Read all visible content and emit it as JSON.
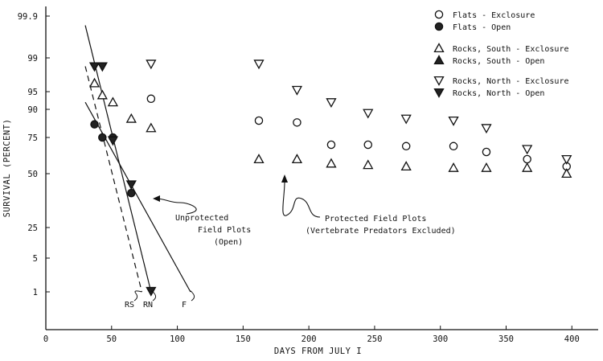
{
  "chart_data": {
    "type": "scatter",
    "xlabel": "DAYS FROM JULY I",
    "ylabel": "SURVIVAL (PERCENT)",
    "scale": "probability",
    "xlim": [
      0,
      420
    ],
    "x_ticks": [
      0,
      50,
      100,
      150,
      200,
      250,
      300,
      350,
      400
    ],
    "y_ticks": [
      1,
      5,
      25,
      50,
      75,
      90,
      95,
      99,
      99.9
    ],
    "y_tick_labels": [
      "1",
      "5",
      "25",
      "50",
      "75",
      "90",
      "95",
      "99",
      "99.9"
    ],
    "legend_position": "top-right",
    "series": [
      {
        "name": "Flats - Exclosure",
        "marker": "circle-open",
        "x": [
          80,
          162,
          191,
          217,
          245,
          274,
          310,
          335,
          366,
          396
        ],
        "y": [
          93,
          84,
          83,
          70,
          70,
          69,
          69,
          65,
          60,
          55
        ]
      },
      {
        "name": "Flats - Open",
        "marker": "circle-filled",
        "x": [
          37,
          43,
          51,
          65
        ],
        "y": [
          82,
          75,
          75,
          41
        ]
      },
      {
        "name": "Rocks, South - Exclosure",
        "marker": "triangle-up-open",
        "x": [
          37,
          43,
          51,
          65,
          80,
          162,
          191,
          217,
          245,
          274,
          310,
          335,
          366,
          396
        ],
        "y": [
          96,
          94,
          92,
          85,
          80,
          60,
          60,
          57,
          56,
          55,
          54,
          54,
          54,
          50
        ]
      },
      {
        "name": "Rocks, South - Open",
        "marker": "triangle-up-filled",
        "x": [],
        "y": []
      },
      {
        "name": "Rocks, North - Exclosure",
        "marker": "triangle-down-open",
        "x": [
          80,
          162,
          191,
          217,
          245,
          274,
          310,
          335,
          366,
          396
        ],
        "y": [
          98.3,
          98.3,
          95.2,
          92,
          88,
          85,
          84,
          80,
          67,
          60
        ]
      },
      {
        "name": "Rocks, North - Open",
        "marker": "triangle-down-filled",
        "x": [
          37,
          43,
          51,
          65,
          80
        ],
        "y": [
          98,
          98,
          73,
          45,
          1.1
        ]
      }
    ],
    "fit_lines": [
      {
        "label": "RS",
        "style": "dashed",
        "x": [
          30,
          73
        ],
        "y": [
          98,
          1
        ]
      },
      {
        "label": "RN",
        "style": "solid",
        "x": [
          30,
          80
        ],
        "y": [
          99.7,
          1
        ]
      },
      {
        "label": "F",
        "style": "solid",
        "x": [
          30,
          110
        ],
        "y": [
          92,
          1
        ]
      }
    ],
    "annotations": [
      {
        "text": [
          "Unprotected",
          "Field Plots",
          "(Open)"
        ]
      },
      {
        "text": [
          "Protected Field Plots",
          "(Vertebrate Predators Excluded)"
        ]
      }
    ]
  }
}
